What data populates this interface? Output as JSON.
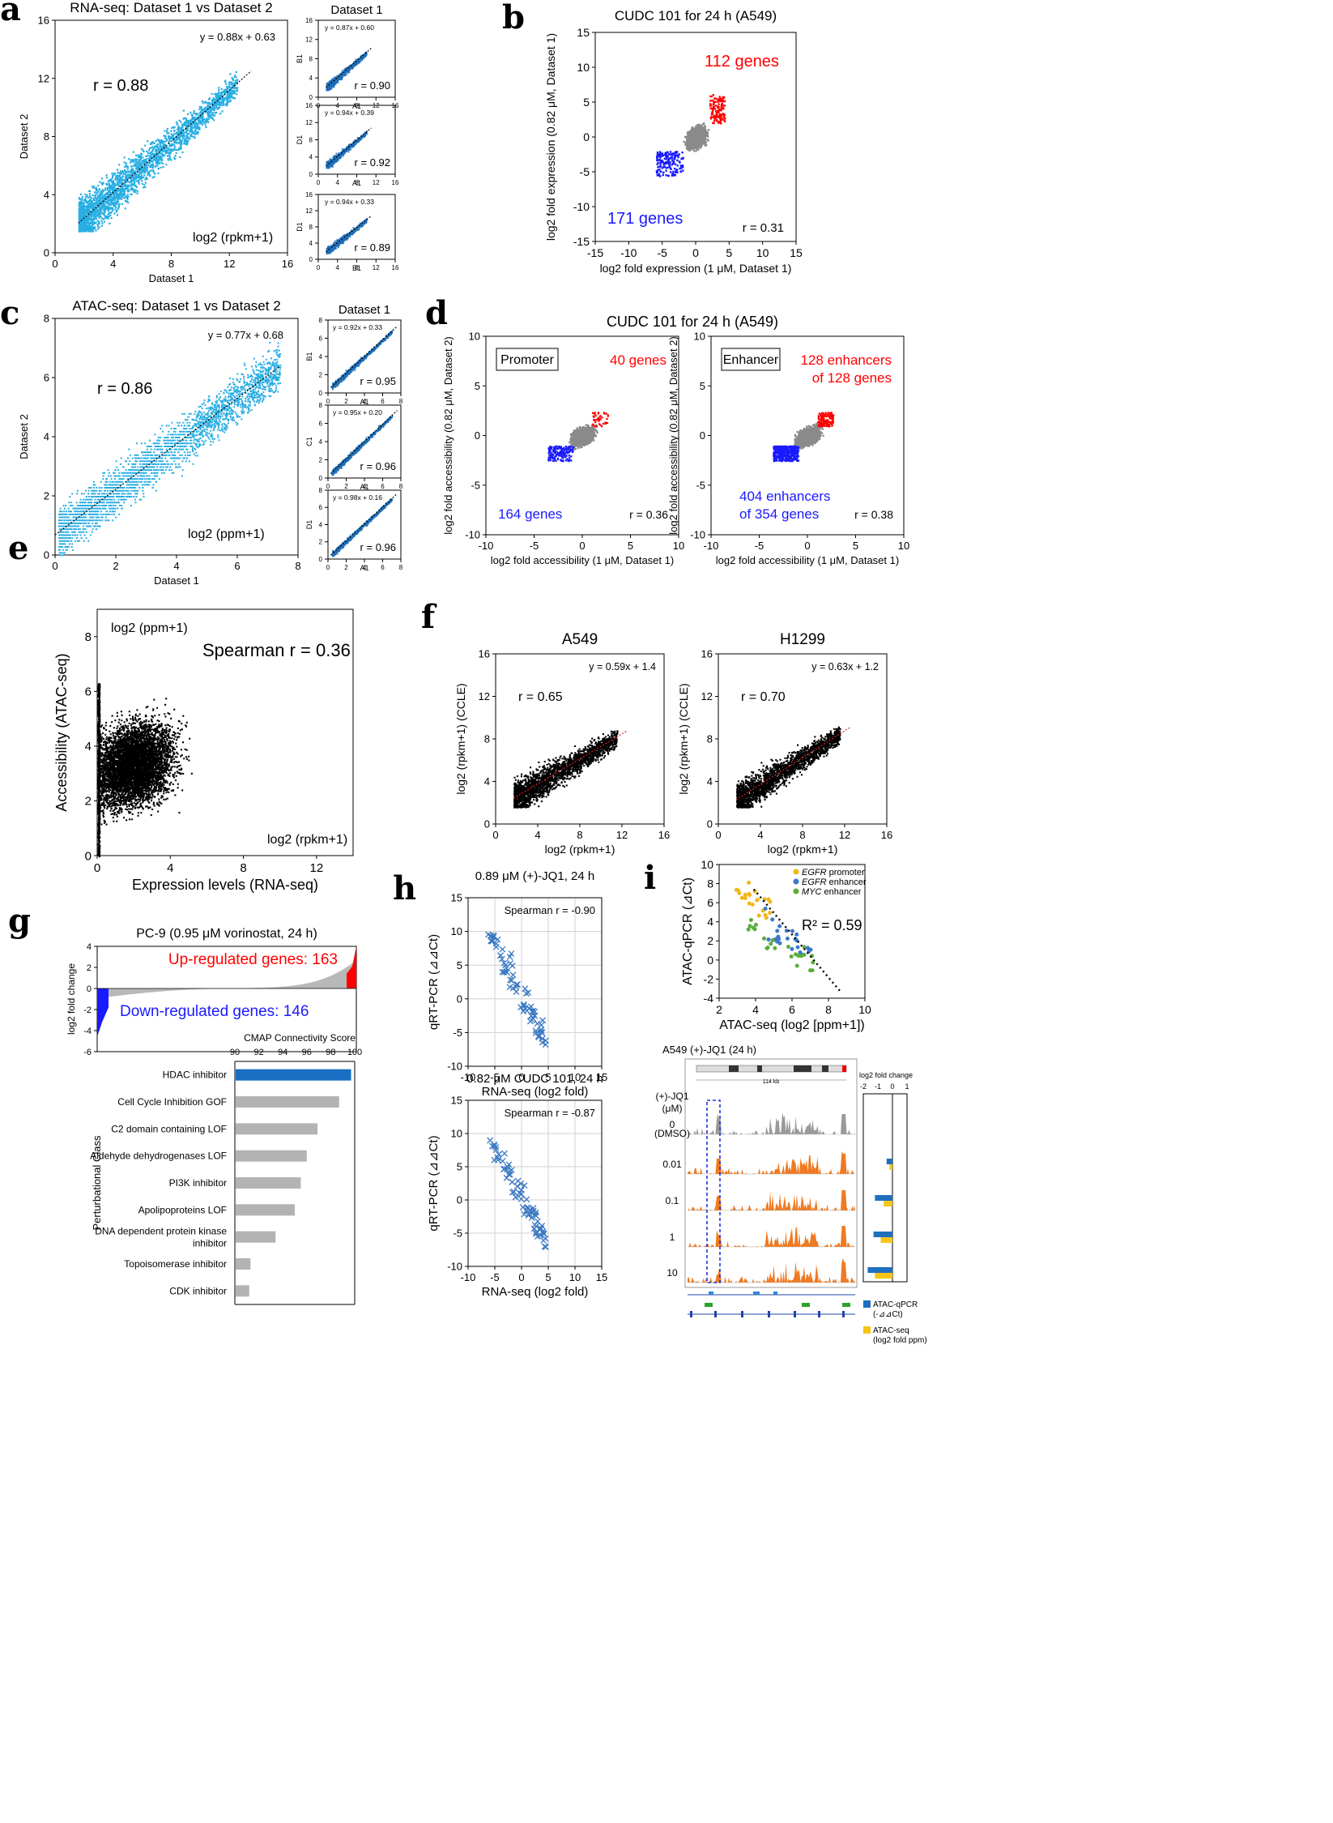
{
  "panel_letters": [
    "a",
    "b",
    "c",
    "d",
    "e",
    "f",
    "g",
    "h",
    "i"
  ],
  "chart_data": [
    {
      "id": "a_main",
      "type": "scatter",
      "title": "RNA-seq: Dataset 1 vs Dataset 2",
      "xlabel": "Dataset 1",
      "ylabel": "Dataset 2",
      "xlim": [
        0,
        16
      ],
      "ylim": [
        0,
        16
      ],
      "xticks": [
        0,
        4,
        8,
        12,
        16
      ],
      "yticks": [
        0,
        4,
        8,
        12,
        16
      ],
      "equation": "y = 0.88x + 0.63",
      "r_label": "r = 0.88",
      "unit_note": "log2 (rpkm+1)",
      "fit": {
        "slope": 0.88,
        "intercept": 0.63
      },
      "point_color": "#29aee3"
    },
    {
      "id": "a_s1",
      "type": "scatter",
      "title": "Dataset 1",
      "xlabel": "A1",
      "ylabel": "B1",
      "xlim": [
        0,
        16
      ],
      "ylim": [
        0,
        16
      ],
      "xticks": [
        0,
        4,
        8,
        12,
        16
      ],
      "yticks": [
        0,
        4,
        8,
        12,
        16
      ],
      "equation": "y = 0.87x + 0.60",
      "r_label": "r = 0.90",
      "fit": {
        "slope": 0.87,
        "intercept": 0.6
      },
      "point_color": "#1d6eb8"
    },
    {
      "id": "a_s2",
      "type": "scatter",
      "title": "",
      "xlabel": "A1",
      "ylabel": "D1",
      "xlim": [
        0,
        16
      ],
      "ylim": [
        0,
        16
      ],
      "xticks": [
        0,
        4,
        8,
        12,
        16
      ],
      "yticks": [
        0,
        4,
        8,
        12,
        16
      ],
      "equation": "y = 0.94x + 0.39",
      "r_label": "r = 0.92",
      "fit": {
        "slope": 0.94,
        "intercept": 0.39
      },
      "point_color": "#1d6eb8"
    },
    {
      "id": "a_s3",
      "type": "scatter",
      "title": "",
      "xlabel": "B1",
      "ylabel": "D1",
      "xlim": [
        0,
        16
      ],
      "ylim": [
        0,
        16
      ],
      "xticks": [
        0,
        4,
        8,
        12,
        16
      ],
      "yticks": [
        0,
        4,
        8,
        12,
        16
      ],
      "equation": "y = 0.94x + 0.33",
      "r_label": "r = 0.89",
      "fit": {
        "slope": 0.94,
        "intercept": 0.33
      },
      "point_color": "#1d6eb8"
    },
    {
      "id": "b",
      "type": "scatter",
      "title": "CUDC 101 for 24 h (A549)",
      "xlabel": "log2 fold expression (1 μM, Dataset 1)",
      "ylabel": "log2 fold expression (0.82 μM, Dataset 1)",
      "xlim": [
        -15,
        15
      ],
      "ylim": [
        -15,
        15
      ],
      "xticks": [
        -15,
        -10,
        -5,
        0,
        5,
        10,
        15
      ],
      "yticks": [
        -15,
        -10,
        -5,
        0,
        5,
        10,
        15
      ],
      "up_label": "112 genes",
      "down_label": "171 genes",
      "r_label": "r = 0.31"
    },
    {
      "id": "c_main",
      "type": "scatter",
      "title": "ATAC-seq: Dataset 1 vs Dataset 2",
      "xlabel": "Dataset 1",
      "ylabel": "Dataset 2",
      "xlim": [
        0,
        8
      ],
      "ylim": [
        0,
        8
      ],
      "xticks": [
        0,
        2,
        4,
        6,
        8
      ],
      "yticks": [
        0,
        2,
        4,
        6,
        8
      ],
      "equation": "y = 0.77x + 0.68",
      "r_label": "r = 0.86",
      "unit_note": "log2 (ppm+1)",
      "fit": {
        "slope": 0.77,
        "intercept": 0.68
      },
      "point_color": "#29aee3"
    },
    {
      "id": "c_s1",
      "type": "scatter",
      "title": "Dataset 1",
      "xlabel": "A1",
      "ylabel": "B1",
      "xlim": [
        0,
        8
      ],
      "ylim": [
        0,
        8
      ],
      "xticks": [
        0,
        2,
        4,
        6,
        8
      ],
      "yticks": [
        0,
        2,
        4,
        6,
        8
      ],
      "equation": "y = 0.92x + 0.33",
      "r_label": "r = 0.95",
      "fit": {
        "slope": 0.92,
        "intercept": 0.33
      },
      "point_color": "#1d6eb8"
    },
    {
      "id": "c_s2",
      "type": "scatter",
      "title": "",
      "xlabel": "A1",
      "ylabel": "C1",
      "xlim": [
        0,
        8
      ],
      "ylim": [
        0,
        8
      ],
      "xticks": [
        0,
        2,
        4,
        6,
        8
      ],
      "yticks": [
        0,
        2,
        4,
        6,
        8
      ],
      "equation": "y = 0.95x + 0.20",
      "r_label": "r = 0.96",
      "fit": {
        "slope": 0.95,
        "intercept": 0.2
      },
      "point_color": "#1d6eb8"
    },
    {
      "id": "c_s3",
      "type": "scatter",
      "title": "",
      "xlabel": "A1",
      "ylabel": "D1",
      "xlim": [
        0,
        8
      ],
      "ylim": [
        0,
        8
      ],
      "xticks": [
        0,
        2,
        4,
        6,
        8
      ],
      "yticks": [
        0,
        2,
        4,
        6,
        8
      ],
      "equation": "y = 0.98x + 0.16",
      "r_label": "r = 0.96",
      "fit": {
        "slope": 0.98,
        "intercept": 0.16
      },
      "point_color": "#1d6eb8"
    },
    {
      "id": "d1",
      "type": "scatter",
      "title": "CUDC 101 for 24 h (A549)",
      "box_label": "Promoter",
      "xlabel": "log2 fold accessibility (1 μM, Dataset 1)",
      "ylabel": "log2 fold accessibility (0.82 μM, Dataset 2)",
      "xlim": [
        -10,
        10
      ],
      "ylim": [
        -10,
        10
      ],
      "xticks": [
        -10,
        -5,
        0,
        5,
        10
      ],
      "yticks": [
        -10,
        -5,
        0,
        5,
        10
      ],
      "up_label": "40 genes",
      "down_label": "164 genes",
      "r_label": "r = 0.36"
    },
    {
      "id": "d2",
      "type": "scatter",
      "title": "",
      "box_label": "Enhancer",
      "xlabel": "log2 fold accessibility (1 μM, Dataset 1)",
      "ylabel": "log2 fold accessibility (0.82 μM, Dataset 2)",
      "xlim": [
        -10,
        10
      ],
      "ylim": [
        -10,
        10
      ],
      "xticks": [
        -10,
        -5,
        0,
        5,
        10
      ],
      "yticks": [
        -10,
        -5,
        0,
        5,
        10
      ],
      "up_label": [
        "128 enhancers",
        "of 128 genes"
      ],
      "down_label": [
        "404 enhancers",
        "of 354 genes"
      ],
      "r_label": "r = 0.38"
    },
    {
      "id": "e",
      "type": "scatter",
      "xlabel": "Expression levels (RNA-seq)",
      "ylabel": "Accessibility (ATAC-seq)",
      "xlim": [
        0,
        14
      ],
      "ylim": [
        0,
        9
      ],
      "xticks": [
        0,
        4,
        8,
        12
      ],
      "yticks": [
        0,
        2,
        4,
        6,
        8
      ],
      "corner_note": "log2 (ppm+1)",
      "spearman": "Spearman r = 0.36",
      "unit_note": "log2 (rpkm+1)"
    },
    {
      "id": "f1",
      "type": "scatter",
      "title": "A549",
      "xlabel": "log2 (rpkm+1)",
      "ylabel": "log2 (rpkm+1) (CCLE)",
      "xlim": [
        0,
        16
      ],
      "ylim": [
        0,
        16
      ],
      "xticks": [
        0,
        4,
        8,
        12,
        16
      ],
      "yticks": [
        0,
        4,
        8,
        12,
        16
      ],
      "equation": "y = 0.59x + 1.4",
      "r_label": "r = 0.65",
      "fit": {
        "slope": 0.59,
        "intercept": 1.4
      }
    },
    {
      "id": "f2",
      "type": "scatter",
      "title": "H1299",
      "xlabel": "log2 (rpkm+1)",
      "ylabel": "log2 (rpkm+1) (CCLE)",
      "xlim": [
        0,
        16
      ],
      "ylim": [
        0,
        16
      ],
      "xticks": [
        0,
        4,
        8,
        12,
        16
      ],
      "yticks": [
        0,
        4,
        8,
        12,
        16
      ],
      "equation": "y = 0.63x + 1.2",
      "r_label": "r = 0.70",
      "fit": {
        "slope": 0.63,
        "intercept": 1.2
      }
    },
    {
      "id": "g_top",
      "type": "area",
      "title": "PC-9 (0.95 μM vorinostat, 24 h)",
      "ylabel": "log2 fold change",
      "ylim": [
        -6,
        4
      ],
      "yticks": [
        4,
        2,
        0,
        -2,
        -4,
        -6
      ],
      "up_label": "Up-regulated genes: 163",
      "down_label": "Down-regulated genes: 146"
    },
    {
      "id": "g_bar",
      "type": "bar",
      "title": "CMAP Connectivity Score",
      "ylabel": "Perturbational Class",
      "xlim": [
        90,
        100
      ],
      "xticks": [
        90,
        92,
        94,
        96,
        98,
        100
      ],
      "categories": [
        "HDAC inhibitor",
        "Cell Cycle Inhibition GOF",
        "C2 domain containing LOF",
        "Aldehyde dehydrogenases LOF",
        "PI3K inhibitor",
        "Apolipoproteins LOF",
        "DNA dependent protein kinase inhibitor",
        "Topoisomerase inhibitor",
        "CDK inhibitor"
      ],
      "values": [
        99.7,
        98.7,
        96.9,
        96.0,
        95.5,
        95.0,
        93.4,
        91.3,
        91.2
      ]
    },
    {
      "id": "h1",
      "type": "scatter",
      "title": "0.89 μM (+)-JQ1, 24 h",
      "xlabel": "RNA-seq (log2 fold)",
      "ylabel": "qRT-PCR (⊿⊿Ct)",
      "xlim": [
        -10,
        15
      ],
      "ylim": [
        -10,
        15
      ],
      "xticks": [
        -10,
        -5,
        0,
        5,
        10,
        15
      ],
      "yticks": [
        -10,
        -5,
        0,
        5,
        10,
        15
      ],
      "spearman": "Spearman r = -0.90"
    },
    {
      "id": "h2",
      "type": "scatter",
      "title": "0.82 μM CUDC 101, 24 h",
      "xlabel": "RNA-seq (log2 fold)",
      "ylabel": "qRT-PCR (⊿⊿Ct)",
      "xlim": [
        -10,
        15
      ],
      "ylim": [
        -10,
        15
      ],
      "xticks": [
        -10,
        -5,
        0,
        5,
        10,
        15
      ],
      "yticks": [
        -10,
        -5,
        0,
        5,
        10,
        15
      ],
      "spearman": "Spearman r = -0.87"
    },
    {
      "id": "i_scatter",
      "type": "scatter",
      "xlabel": "ATAC-seq (log2 [ppm+1])",
      "ylabel": "ATAC-qPCR (⊿Ct)",
      "xlim": [
        2,
        10
      ],
      "ylim": [
        -4,
        10
      ],
      "xticks": [
        2,
        4,
        6,
        8,
        10
      ],
      "yticks": [
        -4,
        -2,
        0,
        2,
        4,
        6,
        8,
        10
      ],
      "r2": "R² = 0.59",
      "legend": [
        {
          "italic": "EGFR",
          "rest": " promoter",
          "color": "#f2b61b"
        },
        {
          "italic": "EGFR",
          "rest": " enhancer",
          "color": "#3c78c9"
        },
        {
          "italic": "MYC",
          "rest": " enhancer",
          "color": "#5aae3c"
        }
      ]
    },
    {
      "id": "i_tracks",
      "type": "other",
      "title": "A549 (+)-JQ1 (24 h)",
      "condition_header": [
        "(+)-JQ1",
        "(μM)"
      ],
      "conditions": [
        "0",
        "0.01",
        "0.1",
        "1",
        "10"
      ],
      "dmso_label": "(DMSO)",
      "scale_label": "114 kb",
      "bar_title": "log2 fold change",
      "bar_ticks": [
        "-2",
        "-1",
        "0",
        "1"
      ],
      "legend": [
        {
          "label": [
            "ATAC-qPCR",
            "(-⊿⊿Ct)"
          ],
          "color": "#1f6fbf"
        },
        {
          "label": [
            "ATAC-seq",
            "(log2 fold ppm)"
          ],
          "color": "#f5c518"
        }
      ],
      "qpcr_values": [
        0,
        -0.4,
        -1.2,
        -1.3,
        -1.7
      ],
      "seq_values": [
        0,
        -0.2,
        -0.6,
        -0.8,
        -1.2
      ]
    }
  ]
}
